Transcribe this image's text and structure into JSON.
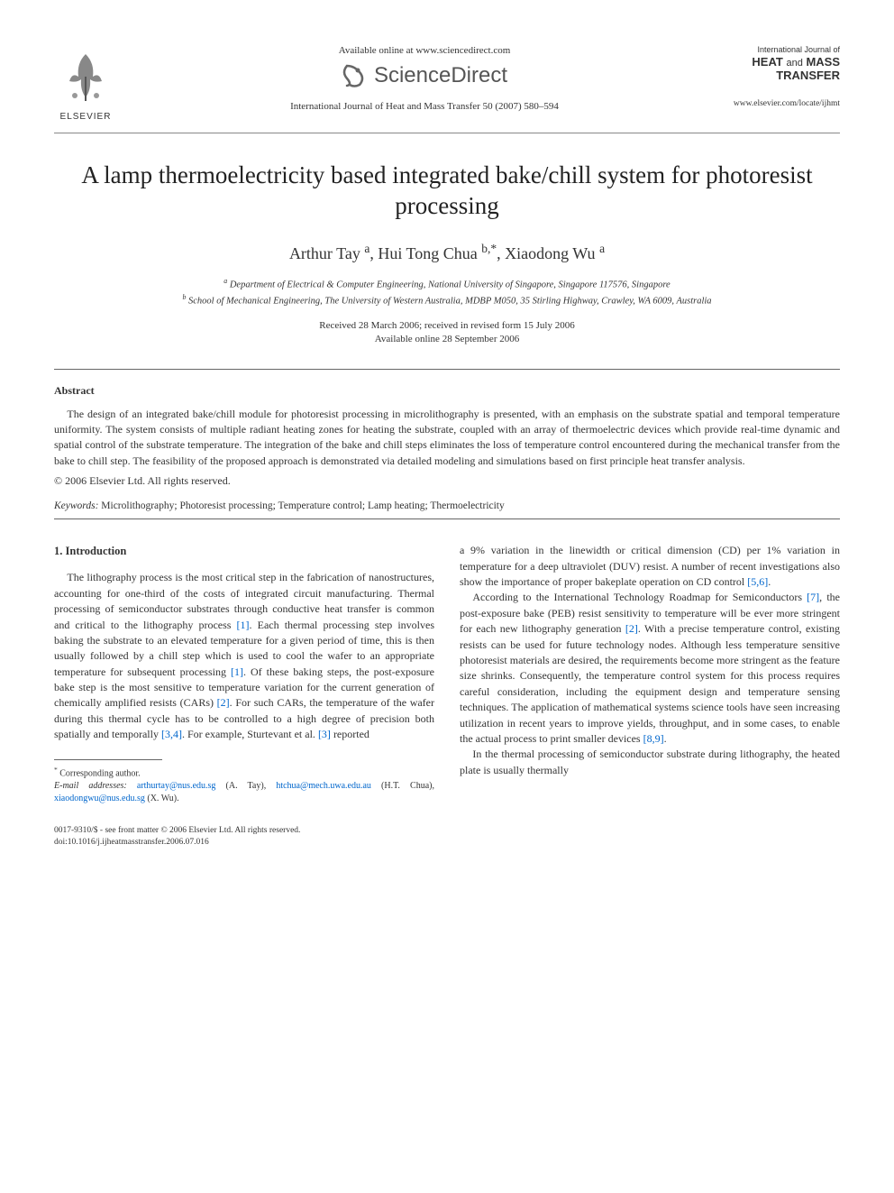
{
  "header": {
    "available_online": "Available online at www.sciencedirect.com",
    "sciencedirect": "ScienceDirect",
    "journal_ref": "International Journal of Heat and Mass Transfer 50 (2007) 580–594",
    "publisher_label": "ELSEVIER",
    "journal_cover": {
      "prefix": "International Journal of",
      "line1": "HEAT",
      "and": "and",
      "line2": "MASS",
      "line3": "TRANSFER",
      "url": "www.elsevier.com/locate/ijhmt"
    }
  },
  "title": "A lamp thermoelectricity based integrated bake/chill system for photoresist processing",
  "authors_html": "Arthur Tay <sup>a</sup>, Hui Tong Chua <sup>b,*</sup>, Xiaodong Wu <sup>a</sup>",
  "affiliations": {
    "a": "Department of Electrical & Computer Engineering, National University of Singapore, Singapore 117576, Singapore",
    "b": "School of Mechanical Engineering, The University of Western Australia, MDBP M050, 35 Stirling Highway, Crawley, WA 6009, Australia"
  },
  "dates": {
    "received": "Received 28 March 2006; received in revised form 15 July 2006",
    "available": "Available online 28 September 2006"
  },
  "abstract": {
    "heading": "Abstract",
    "text": "The design of an integrated bake/chill module for photoresist processing in microlithography is presented, with an emphasis on the substrate spatial and temporal temperature uniformity. The system consists of multiple radiant heating zones for heating the substrate, coupled with an array of thermoelectric devices which provide real-time dynamic and spatial control of the substrate temperature. The integration of the bake and chill steps eliminates the loss of temperature control encountered during the mechanical transfer from the bake to chill step. The feasibility of the proposed approach is demonstrated via detailed modeling and simulations based on first principle heat transfer analysis.",
    "copyright": "© 2006 Elsevier Ltd. All rights reserved."
  },
  "keywords": {
    "label": "Keywords:",
    "text": "Microlithography; Photoresist processing; Temperature control; Lamp heating; Thermoelectricity"
  },
  "section1": {
    "heading": "1. Introduction",
    "left_para": "The lithography process is the most critical step in the fabrication of nanostructures, accounting for one-third of the costs of integrated circuit manufacturing. Thermal processing of semiconductor substrates through conductive heat transfer is common and critical to the lithography process [1]. Each thermal processing step involves baking the substrate to an elevated temperature for a given period of time, this is then usually followed by a chill step which is used to cool the wafer to an appropriate temperature for subsequent processing [1]. Of these baking steps, the post-exposure bake step is the most sensitive to temperature variation for the current generation of chemically amplified resists (CARs) [2]. For such CARs, the temperature of the wafer during this thermal cycle has to be controlled to a high degree of precision both spatially and temporally [3,4]. For example, Sturtevant et al. [3] reported",
    "right_para1": "a 9% variation in the linewidth or critical dimension (CD) per 1% variation in temperature for a deep ultraviolet (DUV) resist. A number of recent investigations also show the importance of proper bakeplate operation on CD control [5,6].",
    "right_para2": "According to the International Technology Roadmap for Semiconductors [7], the post-exposure bake (PEB) resist sensitivity to temperature will be ever more stringent for each new lithography generation [2]. With a precise temperature control, existing resists can be used for future technology nodes. Although less temperature sensitive photoresist materials are desired, the requirements become more stringent as the feature size shrinks. Consequently, the temperature control system for this process requires careful consideration, including the equipment design and temperature sensing techniques. The application of mathematical systems science tools have seen increasing utilization in recent years to improve yields, throughput, and in some cases, to enable the actual process to print smaller devices [8,9].",
    "right_para3": "In the thermal processing of semiconductor substrate during lithography, the heated plate is usually thermally"
  },
  "footnote": {
    "corresponding": "Corresponding author.",
    "email_label": "E-mail addresses:",
    "emails": [
      {
        "addr": "arthurtay@nus.edu.sg",
        "who": "(A. Tay)"
      },
      {
        "addr": "htchua@mech.uwa.edu.au",
        "who": "(H.T. Chua)"
      },
      {
        "addr": "xiaodongwu@nus.edu.sg",
        "who": "(X. Wu)."
      }
    ]
  },
  "bottom": {
    "line1": "0017-9310/$ - see front matter © 2006 Elsevier Ltd. All rights reserved.",
    "line2": "doi:10.1016/j.ijheatmasstransfer.2006.07.016"
  },
  "ref_links": [
    "[1]",
    "[1]",
    "[2]",
    "[3,4]",
    "[3]",
    "[5,6]",
    "[7]",
    "[2]",
    "[8,9]"
  ],
  "colors": {
    "text": "#333333",
    "link": "#0066cc",
    "background": "#ffffff",
    "rule": "#666666"
  }
}
